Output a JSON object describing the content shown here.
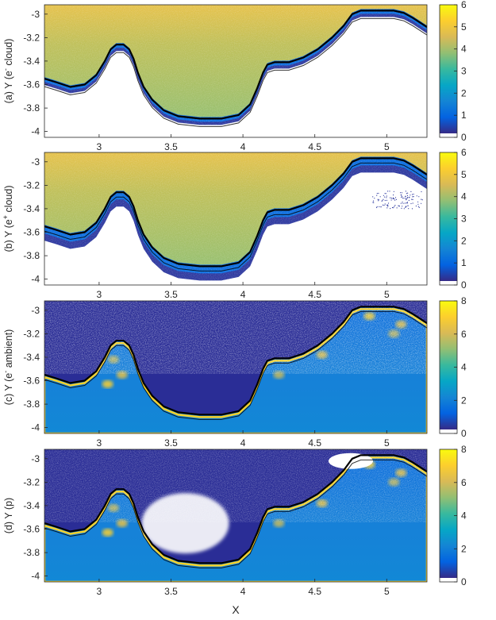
{
  "figure": {
    "xlabel": "X",
    "colors": {
      "parula": [
        "#352a87",
        "#0363e1",
        "#1485d4",
        "#06a7c6",
        "#38b99e",
        "#92bf73",
        "#d9ba56",
        "#fcce2e",
        "#f9fb0e"
      ],
      "boundary": "#000000",
      "low_values": "#ffffff"
    }
  },
  "chart_data": [
    {
      "type": "heatmap",
      "panel": "a",
      "ylabel_prefix": "(a) Y (e",
      "ylabel_superscript": "-",
      "ylabel_suffix": " cloud)",
      "xlim": [
        2.62,
        5.28
      ],
      "ylim": [
        -4.05,
        -2.92
      ],
      "xticks": [
        "3",
        "3.5",
        "4",
        "4.5",
        "5"
      ],
      "yticks": [
        "-3",
        "-3.2",
        "-3.4",
        "-3.6",
        "-3.8",
        "-4"
      ],
      "colorbar": {
        "range": [
          0,
          6
        ],
        "ticks": [
          "6",
          "5",
          "4",
          "3",
          "2",
          "1",
          "0"
        ]
      },
      "fill_level": 4.3
    },
    {
      "type": "heatmap",
      "panel": "b",
      "ylabel_prefix": "(b) Y (e",
      "ylabel_superscript": "+",
      "ylabel_suffix": " cloud)",
      "xlim": [
        2.62,
        5.28
      ],
      "ylim": [
        -4.05,
        -2.92
      ],
      "xticks": [
        "3",
        "3.5",
        "4",
        "4.5",
        "5"
      ],
      "yticks": [
        "-3",
        "-3.2",
        "-3.4",
        "-3.6",
        "-3.8",
        "-4"
      ],
      "colorbar": {
        "range": [
          0,
          6
        ],
        "ticks": [
          "6",
          "5",
          "4",
          "3",
          "2",
          "1",
          "0"
        ]
      },
      "fill_level": 4.5
    },
    {
      "type": "heatmap",
      "panel": "c",
      "ylabel_prefix": "(c) Y (e",
      "ylabel_superscript": "-",
      "ylabel_suffix": " ambient)",
      "xlim": [
        2.62,
        5.28
      ],
      "ylim": [
        -4.05,
        -2.92
      ],
      "xticks": [
        "3",
        "3.5",
        "4",
        "4.5",
        "5"
      ],
      "yticks": [
        "-3",
        "-3.2",
        "-3.4",
        "-3.6",
        "-3.8",
        "-4"
      ],
      "colorbar": {
        "range": [
          0,
          8
        ],
        "ticks": [
          "8",
          "6",
          "4",
          "2",
          "0"
        ]
      },
      "fill_level": 1.6
    },
    {
      "type": "heatmap",
      "panel": "d",
      "ylabel_prefix": "(d) Y (p)",
      "ylabel_superscript": "",
      "ylabel_suffix": "",
      "xlim": [
        2.62,
        5.28
      ],
      "ylim": [
        -4.05,
        -2.92
      ],
      "xticks": [
        "3",
        "3.5",
        "4",
        "4.5",
        "5"
      ],
      "yticks": [
        "-3",
        "-3.2",
        "-3.4",
        "-3.6",
        "-3.8",
        "-4"
      ],
      "colorbar": {
        "range": [
          0,
          8
        ],
        "ticks": [
          "8",
          "6",
          "4",
          "2",
          "0"
        ]
      },
      "fill_level": 1.8
    }
  ]
}
